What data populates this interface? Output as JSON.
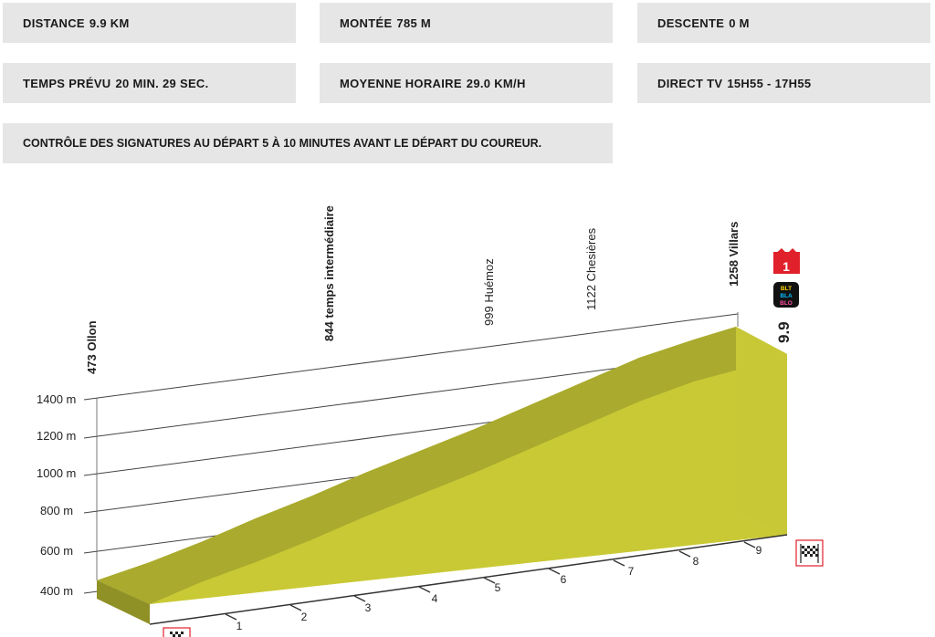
{
  "info": {
    "distance_label": "DISTANCE",
    "distance_value": "9.9 KM",
    "montee_label": "MONTÉE",
    "montee_value": "785 M",
    "descente_label": "DESCENTE",
    "descente_value": "0 M",
    "temps_label": "TEMPS PRÉVU",
    "temps_value": "20 MIN. 29 SEC.",
    "moyenne_label": "MOYENNE HORAIRE",
    "moyenne_value": "29.0 KM/H",
    "direct_label": "DIRECT TV",
    "direct_value": "15H55 - 17H55",
    "controle": "CONTRÔLE DES SIGNATURES AU DÉPART 5 À 10 MINUTES AVANT LE DÉPART DU COUREUR."
  },
  "profile": {
    "y_axis_labels": [
      "400 m",
      "600 m",
      "800 m",
      "1000 m",
      "1200 m",
      "1400 m"
    ],
    "km_labels": [
      "1",
      "2",
      "3",
      "4",
      "5",
      "6",
      "7",
      "8",
      "9"
    ],
    "finish_distance": "9.9",
    "climb_badge": "1",
    "sponsor_text": [
      "BLT",
      "BLA",
      "BLO"
    ],
    "colors": {
      "fill_top": "#a6a72f",
      "fill_side": "#c8c837",
      "fill_end": "#c9c838",
      "badge": "#e0202a",
      "grid": "#444444"
    }
  },
  "locations": [
    {
      "altitude": "473",
      "name": "Ollon",
      "bold": true
    },
    {
      "altitude": "844",
      "name": "temps intermédiaire",
      "bold": true
    },
    {
      "altitude": "999",
      "name": "Huémoz",
      "bold": false
    },
    {
      "altitude": "1122",
      "name": "Chesières",
      "bold": false
    },
    {
      "altitude": "1258",
      "name": "Villars",
      "bold": true
    }
  ]
}
